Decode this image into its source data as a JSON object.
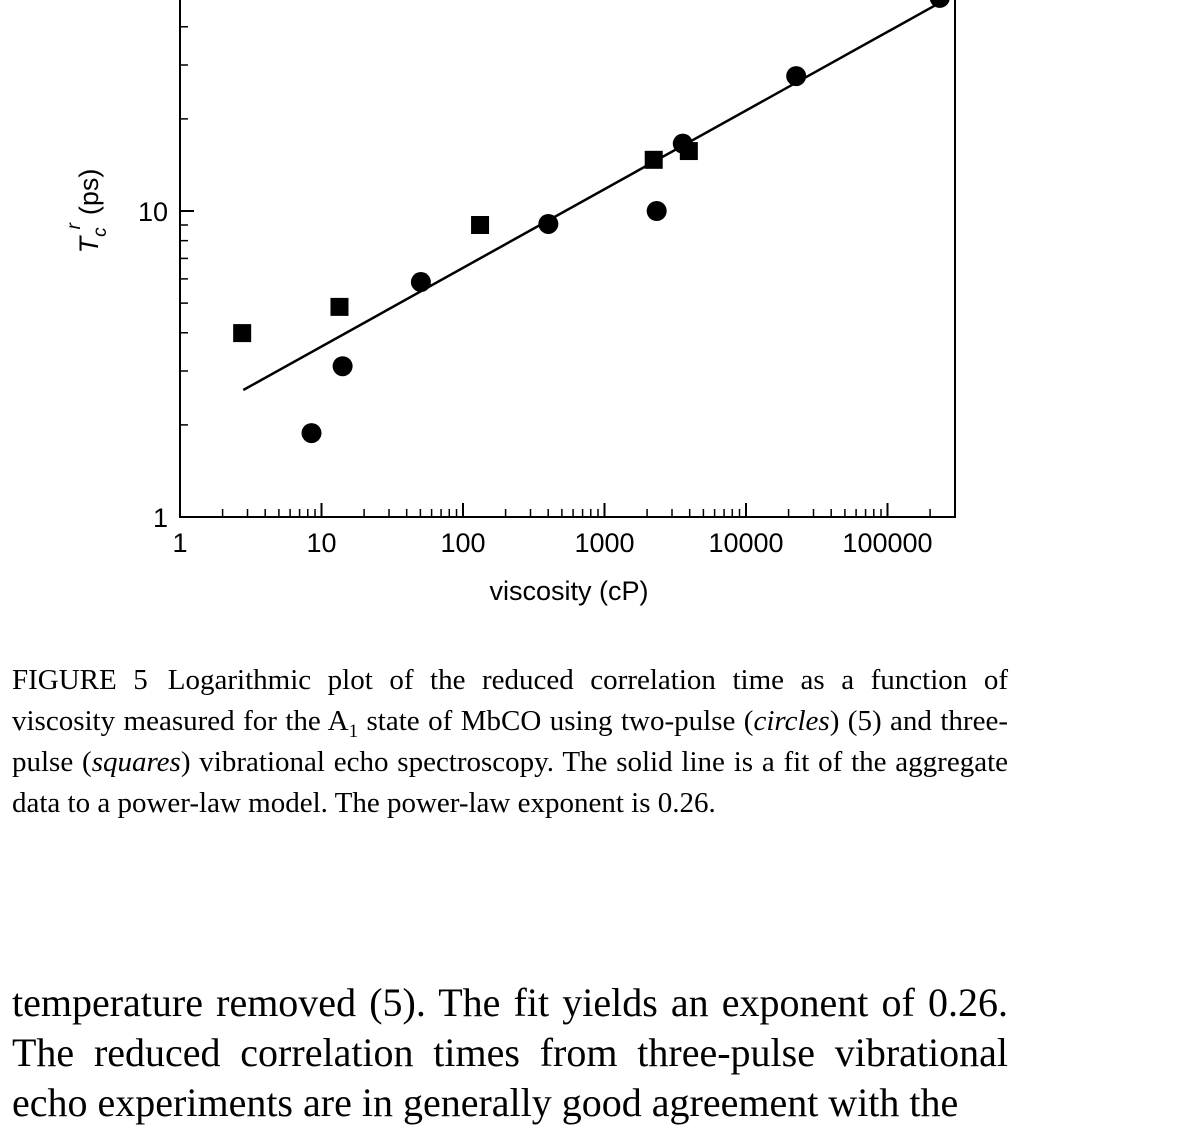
{
  "chart_data": {
    "type": "scatter",
    "log_x": true,
    "log_y": true,
    "xlabel": "viscosity (cP)",
    "ylabel": {
      "symbol": "T",
      "subscript": "c",
      "superscript": "r",
      "unit": "(ps)"
    },
    "xlim": [
      1,
      300000
    ],
    "ylim": [
      1,
      100
    ],
    "xticks": [
      1,
      10,
      100,
      1000,
      10000,
      100000
    ],
    "yticks": [
      1,
      10
    ],
    "minor_ticks": true,
    "series": [
      {
        "marker": "circle",
        "color": "#000000",
        "x": [
          8.5,
          14.1,
          50.4,
          401,
          2338,
          3575,
          22630,
          234000
        ],
        "values": [
          1.88,
          3.11,
          5.86,
          9.07,
          10,
          16.6,
          27.6,
          49.7
        ]
      },
      {
        "marker": "square",
        "color": "#000000",
        "x": [
          2.75,
          13.4,
          132,
          2228,
          3945
        ],
        "values": [
          3.99,
          4.86,
          9.0,
          14.7,
          15.7
        ]
      },
      {
        "marker": "line",
        "color": "#000000",
        "x": [
          2.8,
          234000
        ],
        "values": [
          2.6,
          47.9
        ]
      }
    ]
  },
  "caption": {
    "label": "FIGURE 5",
    "segments": [
      {
        "text": "Logarithmic plot of the reduced correlation time as a function of viscosity measured for the A",
        "style": "normal"
      },
      {
        "text": "1",
        "style": "sub"
      },
      {
        "text": " state of MbCO using two-pulse (",
        "style": "normal"
      },
      {
        "text": "circles",
        "style": "italic"
      },
      {
        "text": ") (5) and three-pulse (",
        "style": "normal"
      },
      {
        "text": "squares",
        "style": "italic"
      },
      {
        "text": ") vibrational echo spectroscopy. The solid line is a fit of the aggregate data to a power-law model. The power-law exponent is 0.26.",
        "style": "normal"
      }
    ]
  },
  "body": {
    "text": "temperature removed (5). The fit yields an exponent of 0.26. The reduced correlation times from three-pulse vibrational echo experiments are in generally good agreement with the"
  }
}
